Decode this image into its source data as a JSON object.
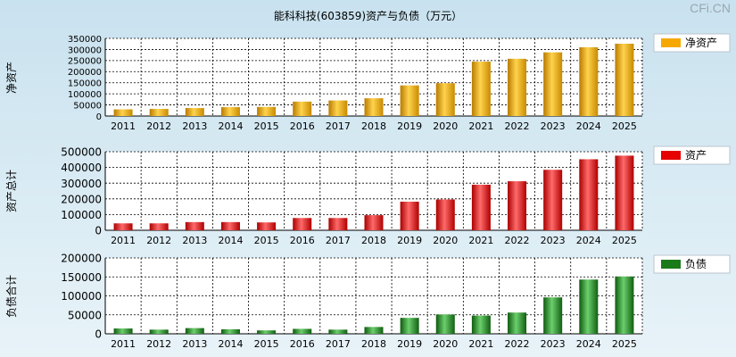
{
  "title": "能科科技(603859)资产与负债（万元）",
  "brand": "CFi.CN",
  "chart_data": [
    {
      "type": "bar",
      "ylabel": "净资产",
      "legend": "净资产",
      "color": "#f5a800",
      "categories": [
        "2011",
        "2012",
        "2013",
        "2014",
        "2015",
        "2016",
        "2017",
        "2018",
        "2019",
        "2020",
        "2021",
        "2022",
        "2023",
        "2024",
        "2025"
      ],
      "values": [
        30000,
        32000,
        36000,
        40000,
        41000,
        65000,
        70000,
        80000,
        138000,
        148000,
        245000,
        258000,
        287000,
        310000,
        326000
      ],
      "ylim": [
        0,
        350000
      ],
      "yticks": [
        0,
        50000,
        100000,
        150000,
        200000,
        250000,
        300000,
        350000
      ],
      "grid": true,
      "legend_position": "right"
    },
    {
      "type": "bar",
      "ylabel": "资产总计",
      "legend": "资产",
      "color": "#e60000",
      "categories": [
        "2011",
        "2012",
        "2013",
        "2014",
        "2015",
        "2016",
        "2017",
        "2018",
        "2019",
        "2020",
        "2021",
        "2022",
        "2023",
        "2024",
        "2025"
      ],
      "values": [
        44000,
        44000,
        52000,
        52000,
        50000,
        78000,
        78000,
        96000,
        182000,
        196000,
        290000,
        312000,
        385000,
        452000,
        475000
      ],
      "ylim": [
        0,
        500000
      ],
      "yticks": [
        0,
        100000,
        200000,
        300000,
        400000,
        500000
      ],
      "grid": true,
      "legend_position": "right"
    },
    {
      "type": "bar",
      "ylabel": "负债合计",
      "legend": "负债",
      "color": "#1a7a1a",
      "categories": [
        "2011",
        "2012",
        "2013",
        "2014",
        "2015",
        "2016",
        "2017",
        "2018",
        "2019",
        "2020",
        "2021",
        "2022",
        "2023",
        "2024",
        "2025"
      ],
      "values": [
        14000,
        11000,
        15000,
        12000,
        9000,
        13000,
        11000,
        18000,
        42000,
        51000,
        48000,
        56000,
        96000,
        143000,
        151000
      ],
      "ylim": [
        0,
        200000
      ],
      "yticks": [
        0,
        50000,
        100000,
        150000,
        200000
      ],
      "grid": true,
      "legend_position": "right"
    }
  ]
}
